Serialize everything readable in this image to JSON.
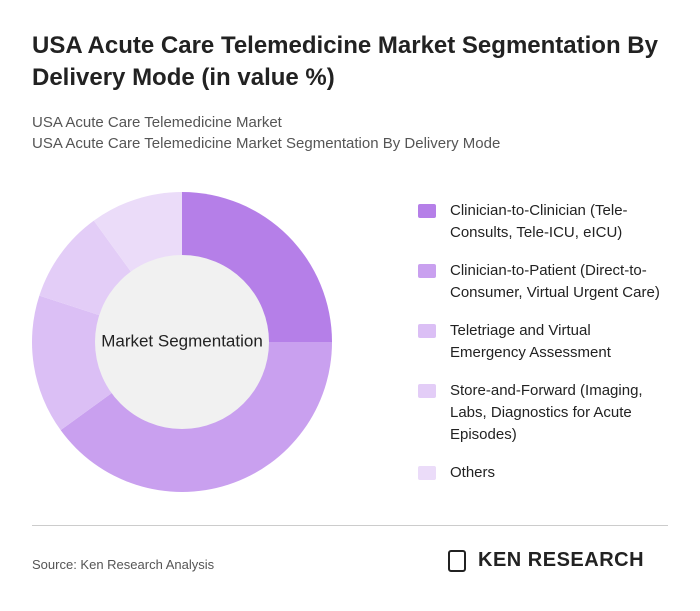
{
  "chart_data": {
    "type": "donut",
    "title": "USA Acute Care Telemedicine Market Segmentation By Delivery Mode (in value %)",
    "subtitle_lines": [
      "USA Acute Care Telemedicine Market",
      "USA Acute Care Telemedicine Market Segmentation By Delivery Mode"
    ],
    "center_label": "Market Segmentation",
    "categories": [
      "Clinician-to-Clinician (Tele-Consults, Tele-ICU, eICU)",
      "Clinician-to-Patient (Direct-to-Consumer, Virtual Urgent Care)",
      "Teletriage and Virtual Emergency Assessment",
      "Store-and-Forward (Imaging, Labs, Diagnostics for Acute Episodes)",
      "Others"
    ],
    "values": [
      25,
      40,
      15,
      10,
      10
    ],
    "colors": [
      "#b57fe8",
      "#c9a0ef",
      "#dbbff5",
      "#e3cdf7",
      "#ebdcf9"
    ],
    "legend": "right",
    "source": "Source: Ken Research Analysis",
    "logo_text": "KEN RESEARCH"
  }
}
